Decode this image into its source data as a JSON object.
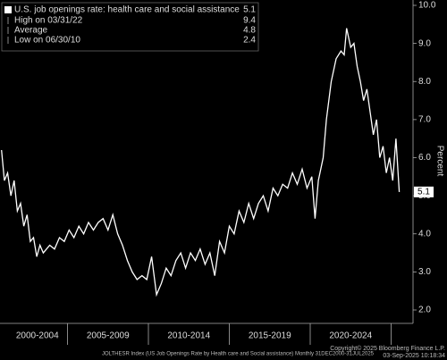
{
  "chart_data": {
    "type": "line",
    "legend": {
      "title": "U.S. job openings rate: health care and social assistance",
      "last": "5.1",
      "rows": [
        {
          "label": "High on 03/31/22",
          "value": "9.4"
        },
        {
          "label": "Average",
          "value": "4.8"
        },
        {
          "label": "Low on 06/30/10",
          "value": "2.4"
        }
      ]
    },
    "y_label": "Percent",
    "last_value_label": "5.1",
    "footer_left": "JOLTHESR Index (US Job Openings Rate by Health care and Social assistance)  Monthly 31DEC2000-31JUL2025",
    "footer_right": "Copyright© 2025 Bloomberg Finance L.P.",
    "footer_date": "03-Sep-2025 10:18:34",
    "x_bands": [
      {
        "label": "2000-2004",
        "start": 2000,
        "end": 2005
      },
      {
        "label": "2005-2009",
        "start": 2005,
        "end": 2010
      },
      {
        "label": "2010-2014",
        "start": 2010,
        "end": 2015
      },
      {
        "label": "2015-2019",
        "start": 2015,
        "end": 2020
      },
      {
        "label": "2020-2024",
        "start": 2020,
        "end": 2025
      }
    ],
    "xlim": [
      2000,
      2025.9
    ],
    "ylim": [
      2.0,
      10.0
    ],
    "yticks": [
      {
        "value": 2,
        "label": "2.0"
      },
      {
        "value": 3,
        "label": "3.0"
      },
      {
        "value": 4,
        "label": "4.0"
      },
      {
        "value": 5,
        "label": "5.0"
      },
      {
        "value": 6,
        "label": "6.0"
      },
      {
        "value": 7,
        "label": "7.0"
      },
      {
        "value": 8,
        "label": "8.0"
      },
      {
        "value": 9,
        "label": "9.0"
      },
      {
        "value": 10,
        "label": "10.0"
      }
    ],
    "series": [
      {
        "name": "U.S. job openings rate: health care and social assistance",
        "color": "#ffffff",
        "x": [
          2000.92,
          2001.1,
          2001.3,
          2001.5,
          2001.7,
          2001.9,
          2002.1,
          2002.3,
          2002.5,
          2002.7,
          2002.9,
          2003.1,
          2003.3,
          2003.5,
          2003.7,
          2003.9,
          2004.2,
          2004.5,
          2004.8,
          2005.1,
          2005.4,
          2005.7,
          2006.0,
          2006.3,
          2006.6,
          2006.9,
          2007.2,
          2007.5,
          2007.8,
          2008.1,
          2008.4,
          2008.7,
          2009.0,
          2009.3,
          2009.6,
          2009.9,
          2010.2,
          2010.5,
          2010.8,
          2011.1,
          2011.4,
          2011.7,
          2012.0,
          2012.3,
          2012.6,
          2012.9,
          2013.2,
          2013.5,
          2013.8,
          2014.1,
          2014.4,
          2014.7,
          2015.0,
          2015.3,
          2015.6,
          2015.9,
          2016.2,
          2016.5,
          2016.8,
          2017.1,
          2017.4,
          2017.7,
          2018.0,
          2018.3,
          2018.6,
          2018.9,
          2019.2,
          2019.5,
          2019.8,
          2020.1,
          2020.3,
          2020.5,
          2020.8,
          2021.0,
          2021.3,
          2021.6,
          2021.9,
          2022.1,
          2022.25,
          2022.5,
          2022.7,
          2022.9,
          2023.1,
          2023.3,
          2023.5,
          2023.7,
          2023.9,
          2024.1,
          2024.3,
          2024.5,
          2024.7,
          2024.9,
          2025.1,
          2025.3,
          2025.5
        ],
        "values": [
          6.2,
          5.4,
          5.6,
          5.0,
          5.4,
          4.6,
          4.8,
          4.2,
          4.5,
          3.8,
          3.9,
          3.4,
          3.7,
          3.5,
          3.6,
          3.7,
          3.6,
          3.9,
          3.8,
          4.1,
          3.9,
          4.2,
          4.0,
          4.3,
          4.1,
          4.3,
          4.4,
          4.1,
          4.5,
          4.0,
          3.7,
          3.3,
          3.0,
          2.8,
          2.9,
          2.8,
          3.4,
          2.4,
          2.7,
          3.1,
          2.9,
          3.3,
          3.5,
          3.1,
          3.5,
          3.3,
          3.6,
          3.2,
          3.5,
          2.9,
          3.8,
          3.5,
          4.2,
          4.0,
          4.6,
          4.3,
          4.8,
          4.4,
          4.8,
          5.0,
          4.6,
          5.2,
          5.0,
          5.3,
          5.2,
          5.6,
          5.3,
          5.7,
          5.2,
          5.5,
          4.4,
          5.4,
          6.0,
          7.0,
          8.0,
          8.6,
          8.8,
          8.7,
          9.4,
          8.9,
          9.0,
          8.4,
          8.0,
          7.5,
          7.8,
          7.2,
          6.6,
          7.0,
          6.0,
          6.3,
          5.6,
          6.0,
          5.4,
          6.5,
          5.1
        ]
      }
    ]
  }
}
